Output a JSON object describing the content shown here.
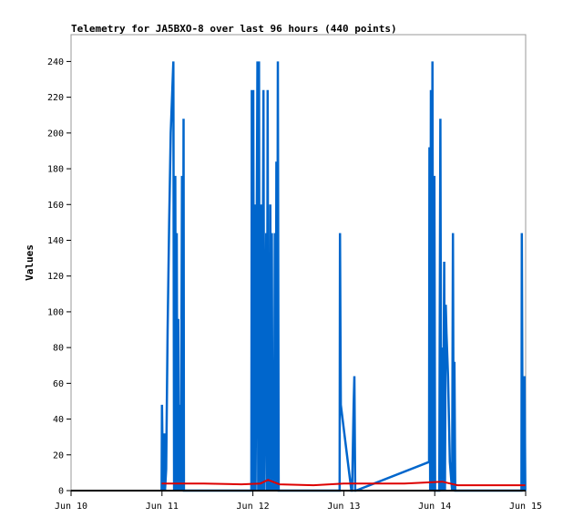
{
  "chart_data": {
    "type": "line",
    "title": "Telemetry for JA5BXO-8 over last 96 hours (440 points)",
    "xlabel": "",
    "ylabel": "Values",
    "x_unit": "hours since Jun 10 00:00",
    "xlim": [
      0,
      120
    ],
    "ylim": [
      0,
      255
    ],
    "x_ticks": [
      {
        "x": 0,
        "label": "Jun 10"
      },
      {
        "x": 24,
        "label": "Jun 11"
      },
      {
        "x": 48,
        "label": "Jun 12"
      },
      {
        "x": 72,
        "label": "Jun 13"
      },
      {
        "x": 96,
        "label": "Jun 14"
      },
      {
        "x": 120,
        "label": "Jun 15"
      }
    ],
    "y_ticks": [
      0,
      20,
      40,
      60,
      80,
      100,
      120,
      140,
      160,
      180,
      200,
      220,
      240
    ],
    "grid": false,
    "legend": "none",
    "colors": {
      "blue": "#0066cc",
      "red": "#dd0000",
      "black": "#000000",
      "frame": "#999999"
    },
    "series": [
      {
        "color": "#0066cc",
        "points": [
          [
            23.9,
            0
          ],
          [
            24.0,
            48
          ],
          [
            24.3,
            0
          ],
          [
            24.6,
            32
          ],
          [
            24.8,
            0
          ],
          [
            25.1,
            12
          ],
          [
            25.5,
            90
          ],
          [
            25.9,
            150
          ],
          [
            26.3,
            200
          ],
          [
            26.7,
            222
          ],
          [
            27.0,
            240
          ],
          [
            27.2,
            0
          ],
          [
            27.5,
            176
          ],
          [
            27.7,
            0
          ],
          [
            27.9,
            144
          ],
          [
            28.1,
            0
          ],
          [
            28.3,
            96
          ],
          [
            28.5,
            0
          ],
          [
            28.7,
            48
          ],
          [
            29.0,
            0
          ],
          [
            29.3,
            176
          ],
          [
            29.5,
            0
          ],
          [
            29.7,
            208
          ],
          [
            29.8,
            0
          ],
          [
            47.6,
            0
          ],
          [
            47.7,
            224
          ],
          [
            47.9,
            0
          ],
          [
            48.1,
            224
          ],
          [
            48.3,
            0
          ],
          [
            48.5,
            160
          ],
          [
            48.7,
            0
          ],
          [
            48.9,
            80
          ],
          [
            49.2,
            240
          ],
          [
            49.4,
            0
          ],
          [
            49.6,
            240
          ],
          [
            49.8,
            0
          ],
          [
            50.2,
            160
          ],
          [
            50.4,
            0
          ],
          [
            50.8,
            224
          ],
          [
            51.0,
            0
          ],
          [
            51.5,
            144
          ],
          [
            51.7,
            0
          ],
          [
            51.9,
            224
          ],
          [
            52.1,
            0
          ],
          [
            52.3,
            72
          ],
          [
            52.5,
            0
          ],
          [
            52.6,
            160
          ],
          [
            52.8,
            0
          ],
          [
            53.0,
            144
          ],
          [
            53.2,
            0
          ],
          [
            53.4,
            64
          ],
          [
            53.6,
            0
          ],
          [
            53.8,
            144
          ],
          [
            54.0,
            0
          ],
          [
            54.2,
            184
          ],
          [
            54.4,
            0
          ],
          [
            54.6,
            240
          ],
          [
            54.8,
            0
          ],
          [
            70.9,
            0
          ],
          [
            71.0,
            144
          ],
          [
            71.2,
            48
          ],
          [
            74.0,
            0
          ],
          [
            74.2,
            0
          ],
          [
            74.6,
            48
          ],
          [
            74.8,
            64
          ],
          [
            75.0,
            0
          ],
          [
            75.2,
            0
          ],
          [
            94.5,
            16
          ],
          [
            94.6,
            192
          ],
          [
            94.8,
            0
          ],
          [
            95.0,
            224
          ],
          [
            95.2,
            0
          ],
          [
            95.4,
            240
          ],
          [
            95.6,
            0
          ],
          [
            95.9,
            176
          ],
          [
            96.1,
            0
          ],
          [
            97.2,
            0
          ],
          [
            97.5,
            208
          ],
          [
            97.7,
            0
          ],
          [
            98.0,
            80
          ],
          [
            98.2,
            0
          ],
          [
            98.5,
            128
          ],
          [
            98.7,
            0
          ],
          [
            98.9,
            104
          ],
          [
            99.1,
            88
          ],
          [
            99.5,
            64
          ],
          [
            100.0,
            16
          ],
          [
            100.6,
            0
          ],
          [
            100.8,
            144
          ],
          [
            101.0,
            0
          ],
          [
            101.2,
            72
          ],
          [
            101.4,
            0
          ],
          [
            118.9,
            0
          ],
          [
            119.0,
            144
          ],
          [
            119.2,
            16
          ],
          [
            119.5,
            0
          ],
          [
            119.7,
            64
          ],
          [
            119.9,
            0
          ]
        ]
      },
      {
        "color": "#dd0000",
        "points": [
          [
            23.9,
            4
          ],
          [
            35.0,
            4
          ],
          [
            45.0,
            3.5
          ],
          [
            50.0,
            4
          ],
          [
            52.0,
            6
          ],
          [
            55.0,
            3.5
          ],
          [
            64.0,
            3
          ],
          [
            72.0,
            4
          ],
          [
            88.0,
            4
          ],
          [
            98.0,
            5
          ],
          [
            102.0,
            3
          ],
          [
            119.9,
            3
          ]
        ]
      },
      {
        "color": "#000000",
        "points": [
          [
            0,
            0
          ],
          [
            120,
            0
          ]
        ]
      }
    ]
  }
}
